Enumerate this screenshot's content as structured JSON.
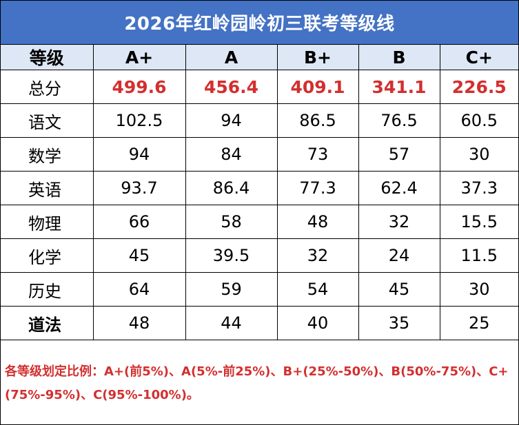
{
  "title": "2026年红岭园岭初三联考等级线",
  "header": {
    "label": "等级",
    "grades": [
      "A+",
      "A",
      "B+",
      "B",
      "C+"
    ]
  },
  "rows": [
    {
      "subject": "总分",
      "values": [
        "499.6",
        "456.4",
        "409.1",
        "341.1",
        "226.5"
      ]
    },
    {
      "subject": "语文",
      "values": [
        "102.5",
        "94",
        "86.5",
        "76.5",
        "60.5"
      ]
    },
    {
      "subject": "数学",
      "values": [
        "94",
        "84",
        "73",
        "57",
        "30"
      ]
    },
    {
      "subject": "英语",
      "values": [
        "93.7",
        "86.4",
        "77.3",
        "62.4",
        "37.3"
      ]
    },
    {
      "subject": "物理",
      "values": [
        "66",
        "58",
        "48",
        "32",
        "15.5"
      ]
    },
    {
      "subject": "化学",
      "values": [
        "45",
        "39.5",
        "32",
        "24",
        "11.5"
      ]
    },
    {
      "subject": "历史",
      "values": [
        "64",
        "59",
        "54",
        "45",
        "30"
      ]
    },
    {
      "subject": "道法",
      "values": [
        "48",
        "44",
        "40",
        "35",
        "25"
      ]
    }
  ],
  "note": "各等级划定比例：A+(前5%)、A(5%-前25%)、B+(25%-50%)、B(50%-75%)、C+(75%-95%)、C(95%-100%)。",
  "colors": {
    "title_bg": "#4472c4",
    "header_bg": "#dde7f5",
    "accent_red": "#d32f2f"
  }
}
